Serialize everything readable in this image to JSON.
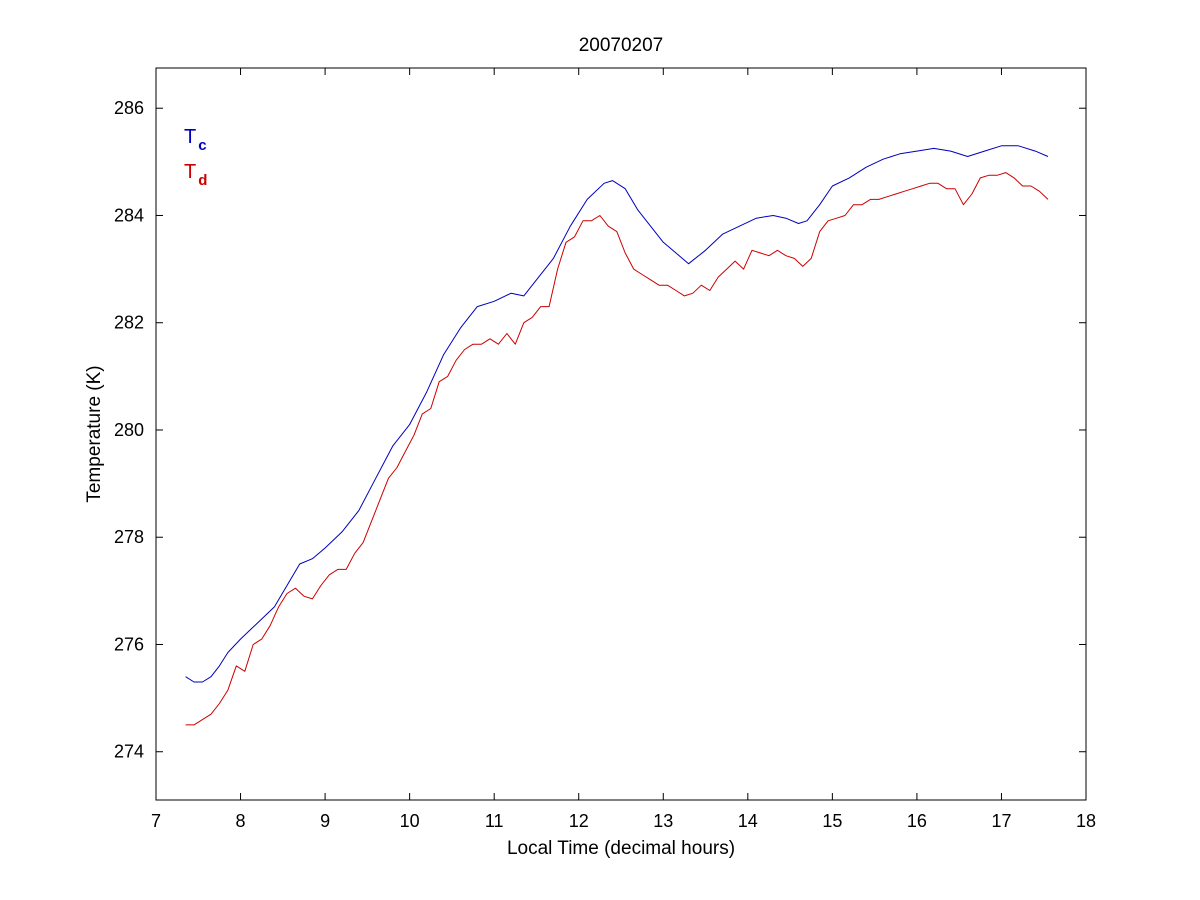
{
  "chart_data": {
    "type": "line",
    "title": "20070207",
    "xlabel": "Local Time (decimal hours)",
    "ylabel": "Temperature (K)",
    "xlim": [
      7,
      18
    ],
    "ylim": [
      273.1,
      286.75
    ],
    "xticks": [
      7,
      8,
      9,
      10,
      11,
      12,
      13,
      14,
      15,
      16,
      17,
      18
    ],
    "yticks": [
      274,
      276,
      278,
      280,
      282,
      284,
      286
    ],
    "grid": false,
    "legend_position": "top-left",
    "colors": {
      "Tc": "#0000bf",
      "Td": "#cc0000"
    },
    "legend": [
      {
        "main": "T",
        "sub": "c",
        "color": "#0000bf"
      },
      {
        "main": "T",
        "sub": "d",
        "color": "#cc0000"
      }
    ],
    "series": [
      {
        "name": "Tc",
        "color": "#0000bf",
        "x": [
          7.35,
          7.45,
          7.55,
          7.65,
          7.75,
          7.85,
          8.0,
          8.2,
          8.4,
          8.55,
          8.7,
          8.85,
          9.0,
          9.2,
          9.4,
          9.6,
          9.8,
          10.0,
          10.2,
          10.4,
          10.6,
          10.8,
          11.0,
          11.2,
          11.35,
          11.5,
          11.7,
          11.9,
          12.1,
          12.3,
          12.4,
          12.55,
          12.7,
          12.85,
          13.0,
          13.15,
          13.3,
          13.5,
          13.7,
          13.9,
          14.1,
          14.3,
          14.45,
          14.6,
          14.7,
          14.85,
          15.0,
          15.2,
          15.4,
          15.6,
          15.8,
          16.0,
          16.2,
          16.4,
          16.6,
          16.8,
          17.0,
          17.2,
          17.4,
          17.55
        ],
        "y": [
          275.4,
          275.3,
          275.3,
          275.4,
          275.6,
          275.85,
          276.1,
          276.4,
          276.7,
          277.1,
          277.5,
          277.6,
          277.8,
          278.1,
          278.5,
          279.1,
          279.7,
          280.1,
          280.7,
          281.4,
          281.9,
          282.3,
          282.4,
          282.55,
          282.5,
          282.8,
          283.2,
          283.8,
          284.3,
          284.6,
          284.65,
          284.5,
          284.1,
          283.8,
          283.5,
          283.3,
          283.1,
          283.35,
          283.65,
          283.8,
          283.95,
          284.0,
          283.95,
          283.85,
          283.9,
          284.2,
          284.55,
          284.7,
          284.9,
          285.05,
          285.15,
          285.2,
          285.25,
          285.2,
          285.1,
          285.2,
          285.3,
          285.3,
          285.2,
          285.1
        ]
      },
      {
        "name": "Td",
        "color": "#cc0000",
        "x": [
          7.35,
          7.45,
          7.55,
          7.65,
          7.75,
          7.85,
          7.95,
          8.05,
          8.15,
          8.25,
          8.35,
          8.45,
          8.55,
          8.65,
          8.75,
          8.85,
          8.95,
          9.05,
          9.15,
          9.25,
          9.35,
          9.45,
          9.55,
          9.65,
          9.75,
          9.85,
          9.95,
          10.05,
          10.15,
          10.25,
          10.35,
          10.45,
          10.55,
          10.65,
          10.75,
          10.85,
          10.95,
          11.05,
          11.15,
          11.25,
          11.35,
          11.45,
          11.55,
          11.65,
          11.75,
          11.85,
          11.95,
          12.05,
          12.15,
          12.25,
          12.35,
          12.45,
          12.55,
          12.65,
          12.75,
          12.85,
          12.95,
          13.05,
          13.15,
          13.25,
          13.35,
          13.45,
          13.55,
          13.65,
          13.75,
          13.85,
          13.95,
          14.05,
          14.15,
          14.25,
          14.35,
          14.45,
          14.55,
          14.65,
          14.75,
          14.85,
          14.95,
          15.05,
          15.15,
          15.25,
          15.35,
          15.45,
          15.55,
          15.65,
          15.75,
          15.85,
          15.95,
          16.05,
          16.15,
          16.25,
          16.35,
          16.45,
          16.55,
          16.65,
          16.75,
          16.85,
          16.95,
          17.05,
          17.15,
          17.25,
          17.35,
          17.45,
          17.55
        ],
        "y": [
          274.5,
          274.5,
          274.6,
          274.7,
          274.9,
          275.15,
          275.6,
          275.5,
          276.0,
          276.1,
          276.35,
          276.7,
          276.95,
          277.05,
          276.9,
          276.85,
          277.1,
          277.3,
          277.4,
          277.4,
          277.7,
          277.9,
          278.3,
          278.7,
          279.1,
          279.3,
          279.6,
          279.9,
          280.3,
          280.4,
          280.9,
          281.0,
          281.3,
          281.5,
          281.6,
          281.6,
          281.7,
          281.6,
          281.8,
          281.6,
          282.0,
          282.1,
          282.3,
          282.3,
          283.0,
          283.5,
          283.6,
          283.9,
          283.9,
          284.0,
          283.8,
          283.7,
          283.3,
          283.0,
          282.9,
          282.8,
          282.7,
          282.7,
          282.6,
          282.5,
          282.55,
          282.7,
          282.6,
          282.85,
          283.0,
          283.15,
          283.0,
          283.35,
          283.3,
          283.25,
          283.35,
          283.25,
          283.2,
          283.05,
          283.2,
          283.7,
          283.9,
          283.95,
          284.0,
          284.2,
          284.2,
          284.3,
          284.3,
          284.35,
          284.4,
          284.45,
          284.5,
          284.55,
          284.6,
          284.6,
          284.5,
          284.5,
          284.2,
          284.4,
          284.7,
          284.75,
          284.75,
          284.8,
          284.7,
          284.55,
          284.55,
          284.45,
          284.3
        ]
      }
    ]
  }
}
